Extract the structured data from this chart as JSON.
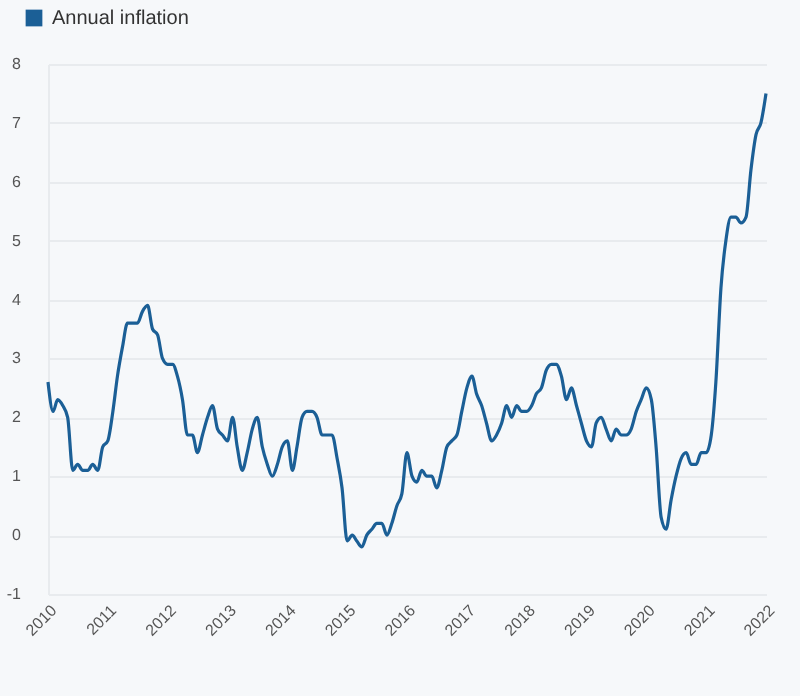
{
  "chart_data": {
    "type": "line",
    "x": [
      "2010-01",
      "2010-02",
      "2010-03",
      "2010-04",
      "2010-05",
      "2010-06",
      "2010-07",
      "2010-08",
      "2010-09",
      "2010-10",
      "2010-11",
      "2010-12",
      "2011-01",
      "2011-02",
      "2011-03",
      "2011-04",
      "2011-05",
      "2011-06",
      "2011-07",
      "2011-08",
      "2011-09",
      "2011-10",
      "2011-11",
      "2011-12",
      "2012-01",
      "2012-02",
      "2012-03",
      "2012-04",
      "2012-05",
      "2012-06",
      "2012-07",
      "2012-08",
      "2012-09",
      "2012-10",
      "2012-11",
      "2012-12",
      "2013-01",
      "2013-02",
      "2013-03",
      "2013-04",
      "2013-05",
      "2013-06",
      "2013-07",
      "2013-08",
      "2013-09",
      "2013-10",
      "2013-11",
      "2013-12",
      "2014-01",
      "2014-02",
      "2014-03",
      "2014-04",
      "2014-05",
      "2014-06",
      "2014-07",
      "2014-08",
      "2014-09",
      "2014-10",
      "2014-11",
      "2014-12",
      "2015-01",
      "2015-02",
      "2015-03",
      "2015-04",
      "2015-05",
      "2015-06",
      "2015-07",
      "2015-08",
      "2015-09",
      "2015-10",
      "2015-11",
      "2015-12",
      "2016-01",
      "2016-02",
      "2016-03",
      "2016-04",
      "2016-05",
      "2016-06",
      "2016-07",
      "2016-08",
      "2016-09",
      "2016-10",
      "2016-11",
      "2016-12",
      "2017-01",
      "2017-02",
      "2017-03",
      "2017-04",
      "2017-05",
      "2017-06",
      "2017-07",
      "2017-08",
      "2017-09",
      "2017-10",
      "2017-11",
      "2017-12",
      "2018-01",
      "2018-02",
      "2018-03",
      "2018-04",
      "2018-05",
      "2018-06",
      "2018-07",
      "2018-08",
      "2018-09",
      "2018-10",
      "2018-11",
      "2018-12",
      "2019-01",
      "2019-02",
      "2019-03",
      "2019-04",
      "2019-05",
      "2019-06",
      "2019-07",
      "2019-08",
      "2019-09",
      "2019-10",
      "2019-11",
      "2019-12",
      "2020-01",
      "2020-02",
      "2020-03",
      "2020-04",
      "2020-05",
      "2020-06",
      "2020-07",
      "2020-08",
      "2020-09",
      "2020-10",
      "2020-11",
      "2020-12",
      "2021-01",
      "2021-02",
      "2021-03",
      "2021-04",
      "2021-05",
      "2021-06",
      "2021-07",
      "2021-08",
      "2021-09",
      "2021-10",
      "2021-11",
      "2021-12",
      "2022-01"
    ],
    "series": [
      {
        "name": "Annual inflation",
        "color": "#1b5f96",
        "values": [
          2.6,
          2.1,
          2.3,
          2.2,
          2.0,
          1.1,
          1.2,
          1.1,
          1.1,
          1.2,
          1.1,
          1.5,
          1.6,
          2.1,
          2.7,
          3.2,
          3.6,
          3.6,
          3.6,
          3.8,
          3.9,
          3.5,
          3.4,
          3.0,
          2.9,
          2.9,
          2.7,
          2.3,
          1.7,
          1.7,
          1.4,
          1.7,
          2.0,
          2.2,
          1.8,
          1.7,
          1.6,
          2.0,
          1.5,
          1.1,
          1.4,
          1.8,
          2.0,
          1.5,
          1.2,
          1.0,
          1.2,
          1.5,
          1.6,
          1.1,
          1.5,
          2.0,
          2.1,
          2.1,
          2.0,
          1.7,
          1.7,
          1.7,
          1.3,
          0.8,
          -0.1,
          0.0,
          -0.1,
          -0.2,
          0.0,
          0.1,
          0.2,
          0.2,
          0.0,
          0.2,
          0.5,
          0.7,
          1.4,
          1.0,
          0.9,
          1.1,
          1.0,
          1.0,
          0.8,
          1.1,
          1.5,
          1.6,
          1.7,
          2.1,
          2.5,
          2.7,
          2.4,
          2.2,
          1.9,
          1.6,
          1.7,
          1.9,
          2.2,
          2.0,
          2.2,
          2.1,
          2.1,
          2.2,
          2.4,
          2.5,
          2.8,
          2.9,
          2.9,
          2.7,
          2.3,
          2.5,
          2.2,
          1.9,
          1.6,
          1.5,
          1.9,
          2.0,
          1.8,
          1.6,
          1.8,
          1.7,
          1.7,
          1.8,
          2.1,
          2.3,
          2.5,
          2.3,
          1.5,
          0.3,
          0.1,
          0.6,
          1.0,
          1.3,
          1.4,
          1.2,
          1.2,
          1.4,
          1.4,
          1.7,
          2.6,
          4.2,
          5.0,
          5.4,
          5.4,
          5.3,
          5.4,
          6.2,
          6.8,
          7.0,
          7.5
        ]
      }
    ],
    "xlim": [
      "2010-01",
      "2022-01"
    ],
    "xticks": [
      "2010",
      "2011",
      "2012",
      "2013",
      "2014",
      "2015",
      "2016",
      "2017",
      "2018",
      "2019",
      "2020",
      "2021",
      "2022"
    ],
    "ylim": [
      -1,
      8
    ],
    "yticks": [
      -1,
      0,
      1,
      2,
      3,
      4,
      5,
      6,
      7,
      8
    ],
    "grid": "y",
    "legend": "top left"
  }
}
